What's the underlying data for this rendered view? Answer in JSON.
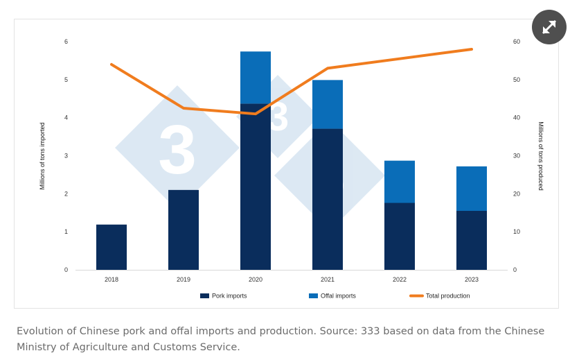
{
  "caption": "Evolution of Chinese pork and offal imports and production. Source: 333 based on data from the Chinese Ministry of Agriculture and Customs Service.",
  "expand_icon": "expand-arrows-icon",
  "watermark_logo": "333",
  "colors": {
    "pork": "#0a2d5c",
    "offal": "#0a6db8",
    "production": "#f07c1e",
    "watermark": "#d7e5f1",
    "expand_button": "#4f4f4f"
  },
  "chart_data": {
    "type": "bar",
    "stacked": true,
    "categories": [
      "2018",
      "2019",
      "2020",
      "2021",
      "2022",
      "2023"
    ],
    "series": [
      {
        "name": "Pork imports",
        "type": "bar",
        "axis": "left",
        "values": [
          1.19,
          2.1,
          4.37,
          3.71,
          1.76,
          1.55
        ]
      },
      {
        "name": "Offal imports",
        "type": "bar",
        "axis": "left",
        "values": [
          0,
          0,
          1.37,
          1.28,
          1.11,
          1.17
        ]
      },
      {
        "name": "Total production",
        "type": "line",
        "axis": "right",
        "values": [
          54,
          42.5,
          41,
          53,
          55.5,
          58
        ]
      }
    ],
    "ylabel": "Millions of tons imported",
    "y2label": "Millions of tons produced",
    "ylim": [
      0,
      6
    ],
    "y2lim": [
      0,
      60
    ],
    "yticks": [
      "0",
      "1",
      "2",
      "3",
      "4",
      "5",
      "6"
    ],
    "y2ticks": [
      "0",
      "10",
      "20",
      "30",
      "40",
      "50",
      "60"
    ],
    "legend_position": "bottom",
    "grid": false
  }
}
